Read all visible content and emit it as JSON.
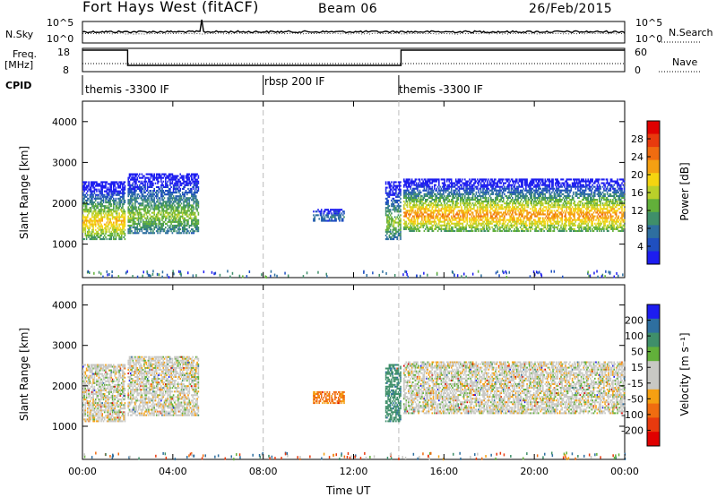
{
  "header": {
    "title": "Fort Hays West (fitACF)",
    "beam": "Beam 06",
    "date": "26/Feb/2015"
  },
  "left_labels": {
    "nsky": "N.Sky",
    "freq_line1": "Freq.",
    "freq_line2": "[MHz]",
    "cpid": "CPID"
  },
  "right_labels": {
    "nsearch": "N.Search",
    "nave": "Nave"
  },
  "noise_axis": {
    "left_top": "10^5",
    "left_bottom": "10^0",
    "right_top": "10^5",
    "right_bottom": "10^0"
  },
  "freq_axis": {
    "left_ticks": [
      "18",
      "8"
    ],
    "right_ticks": [
      "60",
      "0"
    ]
  },
  "cpid_segments": [
    {
      "label": "themis -3300 IF",
      "start_hour": 0
    },
    {
      "label": "rbsp 200 IF",
      "start_hour": 8
    },
    {
      "label": "themis -3300 IF",
      "start_hour": 14
    }
  ],
  "colors": {
    "power_scale": [
      "#1d1df0",
      "#1f4fc0",
      "#2e6fa0",
      "#3f8f6a",
      "#62b03a",
      "#b9d02a",
      "#f5d410",
      "#f5a012",
      "#f06c10",
      "#e83a0e",
      "#e00000"
    ],
    "velocity_scale": [
      "#1d1df0",
      "#2e6fa0",
      "#3f8f6a",
      "#62b03a",
      "#c8c8c4",
      "#c8c8c4",
      "#f5a012",
      "#f06c10",
      "#e83a0e",
      "#e00000"
    ],
    "ground_scatter": "#c8c8c4"
  },
  "chart_data": [
    {
      "type": "heatmap",
      "name_hint": "power",
      "ylabel": "Slant Range [km]",
      "xlabel": "",
      "x_ticks": [
        "00:00",
        "04:00",
        "08:00",
        "12:00",
        "16:00",
        "20:00",
        "00:00"
      ],
      "xlim_hours": [
        0,
        24
      ],
      "y_ticks": [
        1000,
        2000,
        3000,
        4000
      ],
      "ylim": [
        180,
        4500
      ],
      "colorbar_label": "Power [dB]",
      "colorbar_ticks": [
        "28",
        "24",
        "20",
        "16",
        "12",
        "8",
        "4"
      ],
      "colorbar_range": [
        0,
        30
      ],
      "regions": [
        {
          "t0": 0.0,
          "t1": 1.9,
          "r_low": 1100,
          "r_high": 2500,
          "peak": 20
        },
        {
          "t0": 2.0,
          "t1": 5.1,
          "r_low": 1250,
          "r_high": 2700,
          "peak": 14
        },
        {
          "t0": 10.2,
          "t1": 11.6,
          "r_low": 1550,
          "r_high": 1850,
          "peak": 8
        },
        {
          "t0": 13.4,
          "t1": 14.1,
          "r_low": 1100,
          "r_high": 2500,
          "peak": 14
        },
        {
          "t0": 14.2,
          "t1": 24.0,
          "r_low": 1300,
          "r_high": 2600,
          "peak": 22
        }
      ]
    },
    {
      "type": "heatmap",
      "name_hint": "velocity",
      "ylabel": "Slant Range [km]",
      "xlabel": "Time UT",
      "x_ticks": [
        "00:00",
        "04:00",
        "08:00",
        "12:00",
        "16:00",
        "20:00",
        "00:00"
      ],
      "xlim_hours": [
        0,
        24
      ],
      "y_ticks": [
        1000,
        2000,
        3000,
        4000
      ],
      "ylim": [
        180,
        4500
      ],
      "colorbar_label": "Velocity [m s⁻¹]",
      "colorbar_ticks": [
        "200",
        "100",
        "50",
        "15",
        "-15",
        "-50",
        "-100",
        "-200"
      ],
      "colorbar_range": [
        -250,
        250
      ],
      "regions": [
        {
          "t0": 0.0,
          "t1": 1.9,
          "r_low": 1100,
          "r_high": 2500,
          "velocity": 0
        },
        {
          "t0": 2.0,
          "t1": 5.1,
          "r_low": 1250,
          "r_high": 2700,
          "velocity": 0
        },
        {
          "t0": 10.2,
          "t1": 11.6,
          "r_low": 1550,
          "r_high": 1850,
          "velocity": -40
        },
        {
          "t0": 13.4,
          "t1": 14.1,
          "r_low": 1100,
          "r_high": 2500,
          "velocity": 60
        },
        {
          "t0": 14.2,
          "t1": 24.0,
          "r_low": 1300,
          "r_high": 2600,
          "velocity": 0
        }
      ]
    }
  ]
}
